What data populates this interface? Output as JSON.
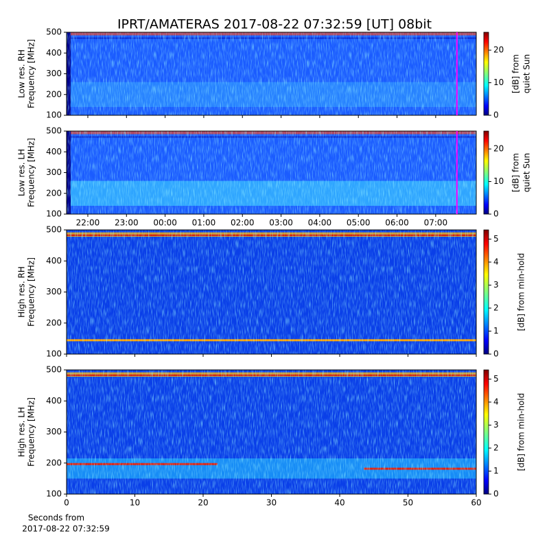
{
  "title": "IPRT/AMATERAS 2017-08-22 07:32:59 [UT]   08bit",
  "chart_data": [
    {
      "type": "spectrogram",
      "ylabel": [
        "Low res. RH",
        "Frequency [MHz]"
      ],
      "ylim": [
        100,
        500
      ],
      "yticks": [
        100,
        200,
        300,
        400,
        500
      ],
      "colormap": "jet",
      "clim": [
        0,
        25.5
      ],
      "cticks": [
        0,
        10,
        20
      ],
      "clabel": [
        "[dB] from",
        "quiet Sun"
      ]
    },
    {
      "type": "spectrogram",
      "ylabel": [
        "Low res. LH",
        "Frequency [MHz]"
      ],
      "ylim": [
        100,
        500
      ],
      "yticks": [
        100,
        200,
        300,
        400,
        500
      ],
      "xlim": [
        21.45,
        32.05
      ],
      "xticks": [
        {
          "value": 22,
          "label": "22:00"
        },
        {
          "value": 23,
          "label": "23:00"
        },
        {
          "value": 24,
          "label": "00:00"
        },
        {
          "value": 25,
          "label": "01:00"
        },
        {
          "value": 26,
          "label": "02:00"
        },
        {
          "value": 27,
          "label": "03:00"
        },
        {
          "value": 28,
          "label": "04:00"
        },
        {
          "value": 29,
          "label": "05:00"
        },
        {
          "value": 30,
          "label": "06:00"
        },
        {
          "value": 31,
          "label": "07:00"
        }
      ],
      "cursor_x": 31.55,
      "cursor_color": "#ff00ff",
      "colormap": "jet",
      "clim": [
        0,
        25.5
      ],
      "cticks": [
        0,
        10,
        20
      ],
      "clabel": [
        "[dB] from",
        "quiet Sun"
      ]
    },
    {
      "type": "spectrogram",
      "ylabel": [
        "High res. RH",
        "Frequency [MHz]"
      ],
      "ylim": [
        100,
        500
      ],
      "yticks": [
        100,
        200,
        300,
        400,
        500
      ],
      "colormap": "jet",
      "clim": [
        0,
        5.4
      ],
      "cticks": [
        0,
        1,
        2,
        3,
        4,
        5
      ],
      "clabel": [
        "[dB] from min-hold"
      ]
    },
    {
      "type": "spectrogram",
      "ylabel": [
        "High res. LH",
        "Frequency [MHz]"
      ],
      "ylim": [
        100,
        500
      ],
      "yticks": [
        100,
        200,
        300,
        400,
        500
      ],
      "xlim": [
        0,
        60
      ],
      "xticks": [
        0,
        10,
        20,
        30,
        40,
        50,
        60
      ],
      "xlabel": [
        "Seconds from",
        "2017-08-22 07:32:59"
      ],
      "colormap": "jet",
      "clim": [
        0,
        5.4
      ],
      "cticks": [
        0,
        1,
        2,
        3,
        4,
        5
      ],
      "clabel": [
        "[dB] from min-hold"
      ]
    }
  ]
}
